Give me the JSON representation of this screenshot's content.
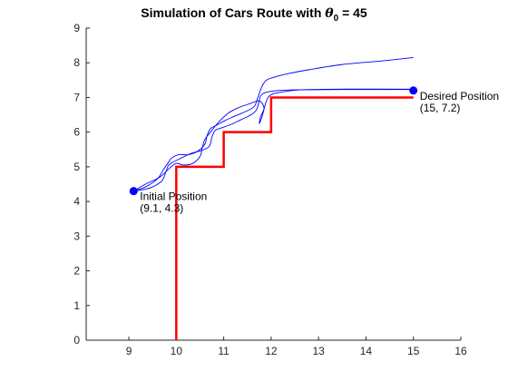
{
  "chart_data": {
    "type": "line",
    "title_main": "Simulation of Cars Route with ",
    "title_theta": "θ",
    "title_subscript": "0",
    "title_suffix": " = 45",
    "xlabel": "",
    "ylabel": "",
    "xlim": [
      8.1,
      16
    ],
    "ylim": [
      0,
      9
    ],
    "xticks": [
      9,
      10,
      11,
      12,
      13,
      14,
      15,
      16
    ],
    "yticks": [
      0,
      1,
      2,
      3,
      4,
      5,
      6,
      7,
      8,
      9
    ],
    "grid": false,
    "box": false,
    "series": [
      {
        "style": "road",
        "color": "#ff0000",
        "points": [
          [
            10,
            0
          ],
          [
            10,
            5
          ],
          [
            11,
            5
          ],
          [
            11,
            6
          ],
          [
            12,
            6
          ],
          [
            12,
            7
          ],
          [
            15,
            7
          ]
        ]
      },
      {
        "style": "route",
        "color": "#0000ff",
        "points": [
          [
            9.1,
            4.3
          ],
          [
            9.3,
            4.34
          ],
          [
            9.5,
            4.42
          ],
          [
            9.7,
            4.6
          ],
          [
            9.78,
            4.85
          ],
          [
            9.84,
            5.05
          ],
          [
            9.95,
            5.15
          ],
          [
            10.1,
            5.25
          ],
          [
            10.3,
            5.38
          ],
          [
            10.55,
            5.48
          ],
          [
            10.7,
            5.6
          ],
          [
            10.75,
            5.85
          ],
          [
            10.82,
            6.05
          ],
          [
            10.95,
            6.12
          ],
          [
            11.15,
            6.22
          ],
          [
            11.35,
            6.35
          ],
          [
            11.55,
            6.48
          ],
          [
            11.68,
            6.62
          ],
          [
            11.74,
            6.85
          ],
          [
            11.78,
            7.05
          ],
          [
            11.9,
            7.15
          ],
          [
            12.15,
            7.2
          ],
          [
            12.5,
            7.22
          ],
          [
            13.5,
            7.23
          ],
          [
            15,
            7.23
          ]
        ]
      },
      {
        "style": "route",
        "color": "#0000ff",
        "points": [
          [
            9.1,
            4.3
          ],
          [
            9.35,
            4.5
          ],
          [
            9.65,
            4.7
          ],
          [
            9.85,
            4.95
          ],
          [
            10.0,
            5.1
          ],
          [
            10.15,
            5.05
          ],
          [
            10.35,
            5.1
          ],
          [
            10.5,
            5.3
          ],
          [
            10.55,
            5.55
          ],
          [
            10.6,
            5.78
          ],
          [
            10.72,
            6.0
          ],
          [
            10.9,
            6.3
          ],
          [
            11.1,
            6.55
          ],
          [
            11.3,
            6.7
          ],
          [
            11.55,
            6.82
          ],
          [
            11.75,
            6.9
          ],
          [
            11.85,
            6.7
          ],
          [
            11.78,
            6.45
          ],
          [
            11.75,
            6.25
          ],
          [
            11.82,
            6.5
          ],
          [
            11.9,
            6.9
          ],
          [
            12.0,
            7.08
          ],
          [
            12.2,
            7.15
          ],
          [
            12.6,
            7.22
          ],
          [
            13.4,
            7.24
          ],
          [
            15,
            7.24
          ]
        ]
      },
      {
        "style": "route",
        "color": "#0000ff",
        "points": [
          [
            9.1,
            4.3
          ],
          [
            9.35,
            4.42
          ],
          [
            9.6,
            4.65
          ],
          [
            9.72,
            4.9
          ],
          [
            9.82,
            5.1
          ],
          [
            9.9,
            5.25
          ],
          [
            10.05,
            5.35
          ],
          [
            10.25,
            5.35
          ],
          [
            10.45,
            5.45
          ],
          [
            10.6,
            5.65
          ],
          [
            10.65,
            5.9
          ],
          [
            10.72,
            6.1
          ],
          [
            10.85,
            6.2
          ],
          [
            11.05,
            6.35
          ],
          [
            11.3,
            6.5
          ],
          [
            11.5,
            6.62
          ],
          [
            11.65,
            6.75
          ],
          [
            11.72,
            7.0
          ],
          [
            11.8,
            7.3
          ],
          [
            11.9,
            7.5
          ],
          [
            12.1,
            7.6
          ],
          [
            12.4,
            7.7
          ],
          [
            12.8,
            7.8
          ],
          [
            13.5,
            7.95
          ],
          [
            14.3,
            8.05
          ],
          [
            15,
            8.15
          ]
        ]
      }
    ],
    "markers": [
      {
        "x": 9.1,
        "y": 4.3,
        "label_line1": "Initial Position",
        "label_line2": "(9.1, 4.3)"
      },
      {
        "x": 15,
        "y": 7.2,
        "label_line1": "Desired Position",
        "label_line2": "(15, 7.2)"
      }
    ]
  }
}
